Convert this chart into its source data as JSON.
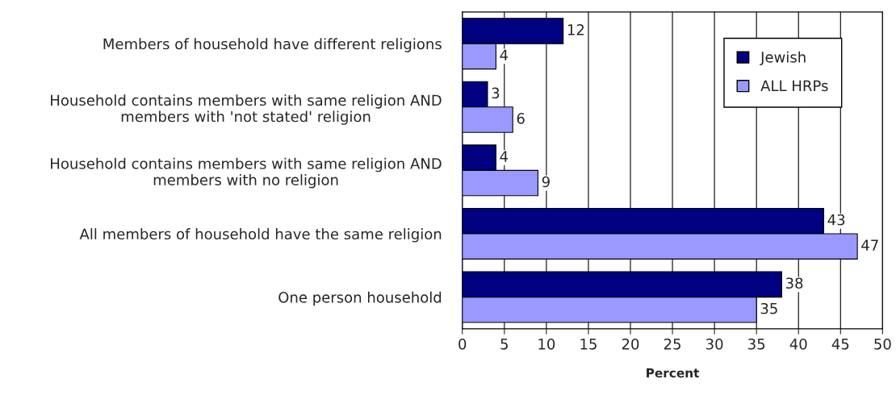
{
  "chart_data": {
    "type": "bar",
    "orientation": "horizontal",
    "xlabel": "Percent",
    "categories": [
      "Members of household have different religions",
      "Household contains members with same religion AND\nmembers with 'not stated' religion",
      "Household contains members with same religion AND\nmembers with no religion",
      "All members of household have the same religion",
      "One person household"
    ],
    "series": [
      {
        "name": "Jewish",
        "color": "#000080",
        "values": [
          12,
          3,
          4,
          43,
          38
        ]
      },
      {
        "name": "ALL HRPs",
        "color": "#9999ff",
        "values": [
          4,
          6,
          9,
          47,
          35
        ]
      }
    ],
    "xlim": [
      0,
      50
    ],
    "xticks": [
      0,
      5,
      10,
      15,
      20,
      25,
      30,
      35,
      40,
      45,
      50
    ],
    "grid": "x",
    "legend": "top right",
    "data_labels": true
  }
}
